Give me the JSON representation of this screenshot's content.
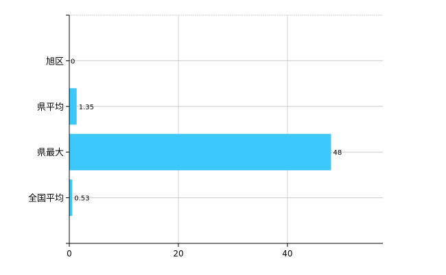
{
  "chart_data": {
    "type": "bar",
    "orientation": "horizontal",
    "categories": [
      "旭区",
      "県平均",
      "県最大",
      "全国平均"
    ],
    "values": [
      0,
      1.35,
      48,
      0.53
    ],
    "data_labels": [
      "0",
      "1.35",
      "48",
      "0.53"
    ],
    "xlim": [
      0,
      57.5
    ],
    "xticks": [
      0,
      20,
      40
    ],
    "xtick_labels": [
      "0",
      "20",
      "40"
    ],
    "grid": true,
    "bar_color": "#3cc8fa",
    "title": "",
    "xlabel": "",
    "ylabel": ""
  }
}
